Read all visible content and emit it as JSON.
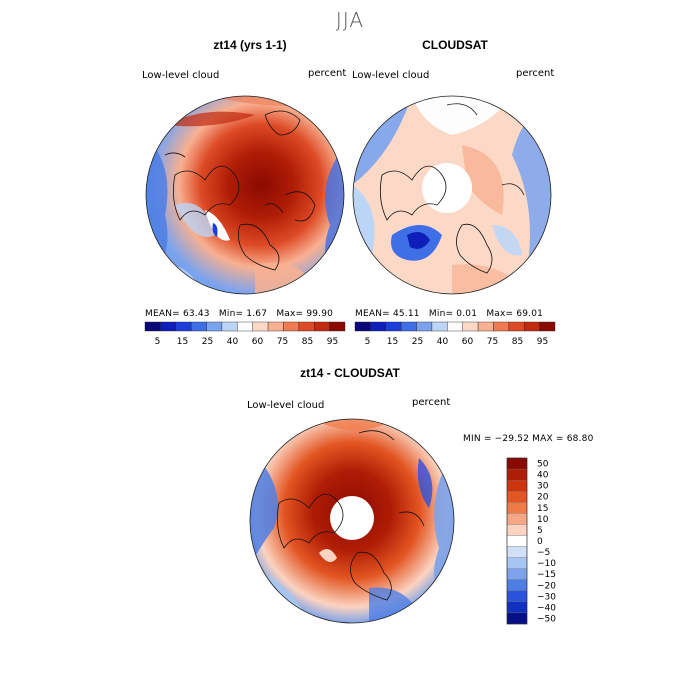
{
  "figure_title": "JJA",
  "palette": {
    "levels_abs": [
      "#08087a",
      "#0d1fb8",
      "#1c3fd9",
      "#3f6fe6",
      "#7aa3ef",
      "#bcd5f6",
      "#fdfdfd",
      "#fcd9c6",
      "#f8b091",
      "#f07a52",
      "#dd4a25",
      "#c12a10",
      "#8a0a02"
    ],
    "levels_diff": [
      "#8a0a02",
      "#b01d06",
      "#cf3411",
      "#e35522",
      "#ef7a48",
      "#f7a785",
      "#fbd3c0",
      "#ffffff",
      "#cfe0f7",
      "#a6c5f2",
      "#7ba2ea",
      "#4e7ee4",
      "#2b52dc",
      "#1130c2",
      "#070f86"
    ]
  },
  "panels": {
    "left": {
      "title": "zt14 (yrs 1-1)",
      "variable": "Low-level cloud",
      "units": "percent",
      "mean_label": "MEAN=",
      "mean": "63.43",
      "min_label": "Min=",
      "min": "1.67",
      "max_label": "Max=",
      "max": "99.90"
    },
    "right": {
      "title": "CLOUDSAT",
      "variable": "Low-level cloud",
      "units": "percent",
      "mean_label": "MEAN=",
      "mean": "45.11",
      "min_label": "Min=",
      "min": "0.01",
      "max_label": "Max=",
      "max": "69.01"
    },
    "bottom": {
      "title": "zt14 - CLOUDSAT",
      "variable": "Low-level cloud",
      "units": "percent",
      "range_text": "MIN = −29.52  MAX =   68.80"
    }
  },
  "colorbar_abs_ticks": [
    "5",
    "15",
    "25",
    "40",
    "60",
    "75",
    "85",
    "95"
  ],
  "colorbar_diff_ticks": [
    "50",
    "40",
    "30",
    "20",
    "15",
    "10",
    "5",
    "0",
    "−5",
    "−10",
    "−15",
    "−20",
    "−30",
    "−40",
    "−50"
  ]
}
